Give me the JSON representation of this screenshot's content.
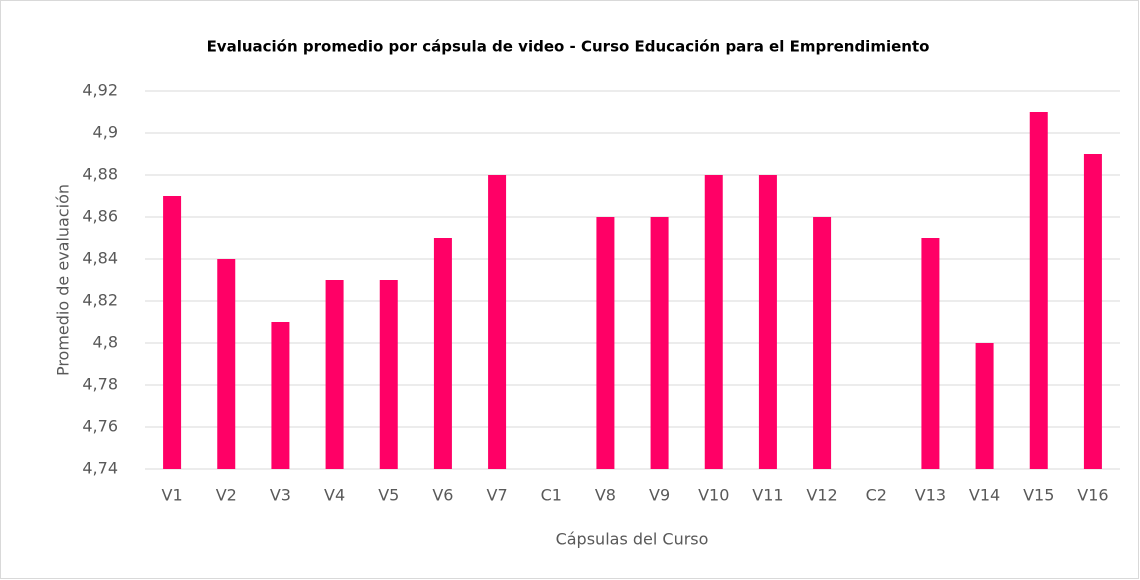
{
  "chart_data": {
    "type": "bar",
    "title": "Evaluación promedio por cápsula de video - Curso Educación para el Emprendimiento",
    "x_label": "Cápsulas del Curso",
    "y_label": "Promedio de evaluación",
    "categories": [
      "V1",
      "V2",
      "V3",
      "V4",
      "V5",
      "V6",
      "V7",
      "C1",
      "V8",
      "V9",
      "V10",
      "V11",
      "V12",
      "C2",
      "V13",
      "V14",
      "V15",
      "V16"
    ],
    "values": [
      4.87,
      4.84,
      4.81,
      4.83,
      4.83,
      4.85,
      4.88,
      null,
      4.86,
      4.86,
      4.88,
      4.88,
      4.86,
      null,
      4.85,
      4.8,
      4.91,
      4.89
    ],
    "color": "#ff0066",
    "ylim": [
      4.74,
      4.92
    ],
    "yticks": [
      {
        "value": 4.74,
        "label": "4,74"
      },
      {
        "value": 4.76,
        "label": "4,76"
      },
      {
        "value": 4.78,
        "label": "4,78"
      },
      {
        "value": 4.8,
        "label": "4,8"
      },
      {
        "value": 4.82,
        "label": "4,82"
      },
      {
        "value": 4.84,
        "label": "4,84"
      },
      {
        "value": 4.86,
        "label": "4,86"
      },
      {
        "value": 4.88,
        "label": "4,88"
      },
      {
        "value": 4.9,
        "label": "4,9"
      },
      {
        "value": 4.92,
        "label": "4,92"
      }
    ],
    "grid": true
  }
}
